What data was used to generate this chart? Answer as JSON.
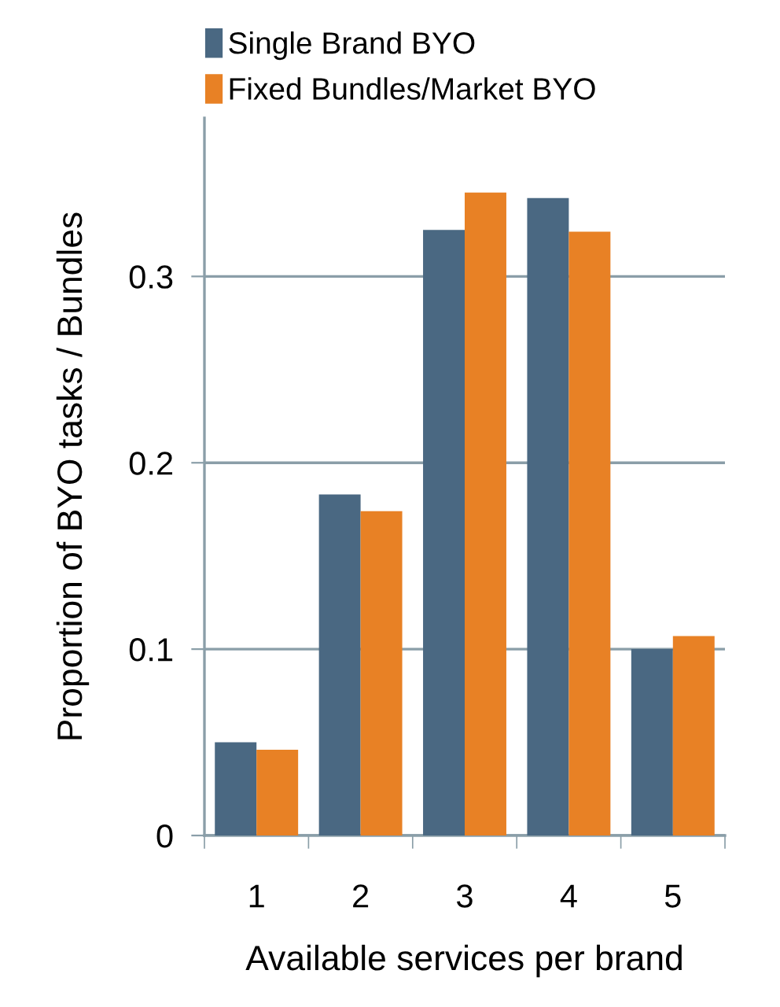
{
  "chart_data": {
    "type": "bar",
    "xlabel": "Available services per brand",
    "ylabel": "Proportion of BYO tasks / Bundles",
    "categories": [
      "1",
      "2",
      "3",
      "4",
      "5"
    ],
    "series": [
      {
        "name": "Single Brand BYO",
        "color": "#4a6882",
        "values": [
          0.05,
          0.183,
          0.325,
          0.342,
          0.1
        ]
      },
      {
        "name": "Fixed Bundles/Market BYO",
        "color": "#e88125",
        "values": [
          0.046,
          0.174,
          0.345,
          0.324,
          0.107
        ]
      }
    ],
    "ylim": [
      0,
      0.385
    ],
    "yticks": [
      0,
      0.1,
      0.2,
      0.3
    ],
    "grid": "y",
    "legend": "top"
  }
}
